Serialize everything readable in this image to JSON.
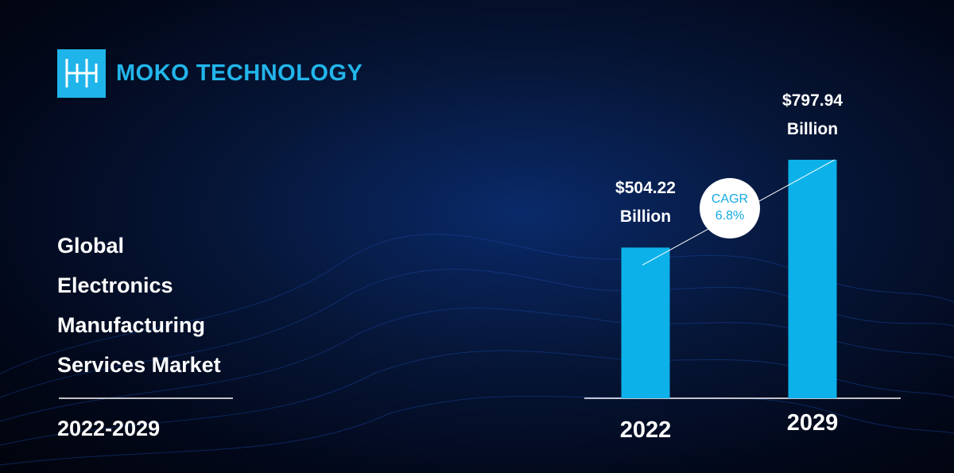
{
  "brand": "MOKO TECHNOLOGY",
  "chart_data": {
    "type": "bar",
    "title": "Global Electronics Manufacturing Services Market",
    "subtitle": "2022-2029",
    "categories": [
      "2022",
      "2029"
    ],
    "values": [
      504.22,
      797.94
    ],
    "value_labels": [
      "$504.22 Billion",
      "$797.94 Billion"
    ],
    "annotation": "CAGR 6.8%",
    "color": "#0db1e9"
  }
}
